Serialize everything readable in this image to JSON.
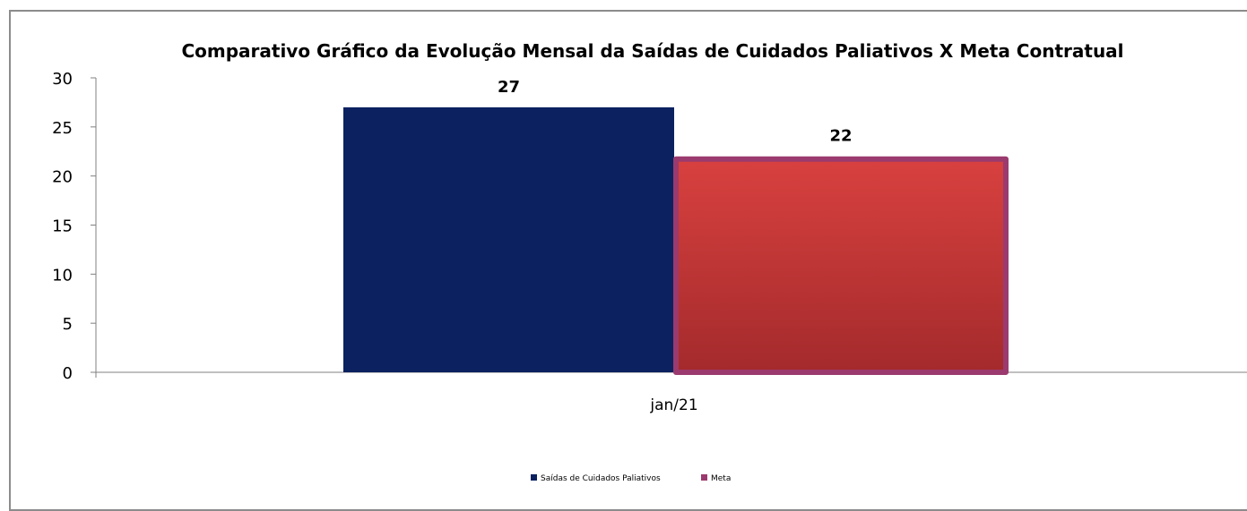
{
  "chart_data": {
    "type": "bar",
    "title": "Comparativo Gráfico da Evolução Mensal da Saídas de Cuidados Paliativos X Meta Contratual",
    "categories": [
      "jan/21"
    ],
    "series": [
      {
        "name": "Saídas de Cuidados Paliativos",
        "values": [
          27
        ],
        "color": "#0b2160"
      },
      {
        "name": "Meta",
        "values": [
          22
        ],
        "color": "#c8393b",
        "border_color": "#9b3a6e"
      }
    ],
    "xlabel": "",
    "ylabel": "",
    "ylim": [
      0,
      30
    ],
    "yticks": [
      0,
      5,
      10,
      15,
      20,
      25,
      30
    ],
    "data_labels": [
      "27",
      "22"
    ],
    "grid": false,
    "legend_position": "bottom"
  }
}
